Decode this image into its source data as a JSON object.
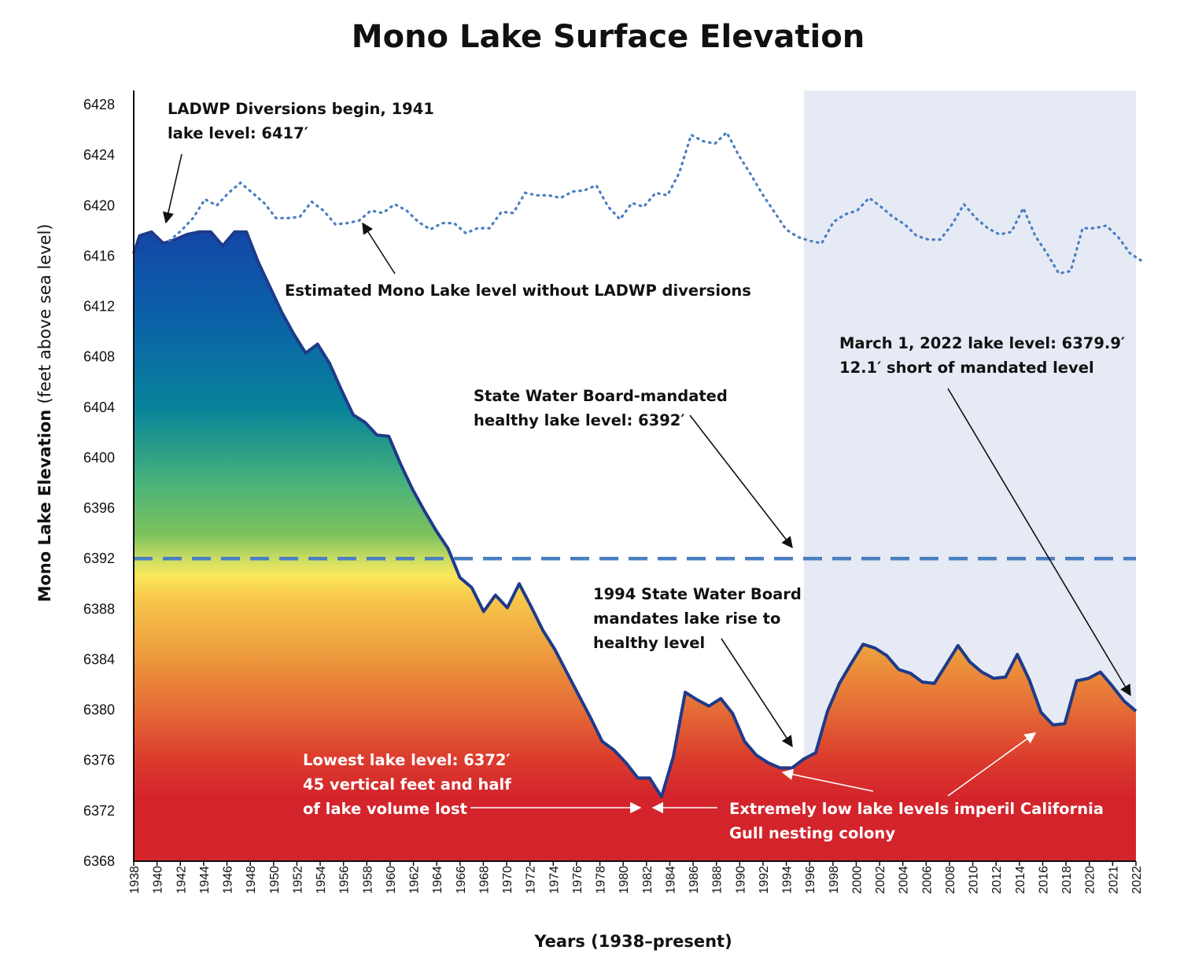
{
  "chart_data": {
    "type": "area",
    "title": "Mono Lake Surface Elevation",
    "xlabel": "Years (1938–present)",
    "ylabel": "Mono Lake Elevation",
    "ylabel_units": "(feet above sea level)",
    "ylim": [
      6368,
      6428
    ],
    "yticks": [
      6368,
      6372,
      6376,
      6380,
      6384,
      6388,
      6392,
      6396,
      6400,
      6404,
      6408,
      6412,
      6416,
      6420,
      6424,
      6428
    ],
    "xticks": [
      "1938",
      "1940",
      "1942",
      "1944",
      "1946",
      "1948",
      "1950",
      "1952",
      "1954",
      "1956",
      "1958",
      "1960",
      "1962",
      "1964",
      "1966",
      "1968",
      "1970",
      "1972",
      "1974",
      "1976",
      "1978",
      "1980",
      "1982",
      "1984",
      "1986",
      "1988",
      "1990",
      "1992",
      "1994",
      "1996",
      "1998",
      "2000",
      "2002",
      "2004",
      "2006",
      "2008",
      "2010",
      "2012",
      "2014",
      "2016",
      "2018",
      "2020",
      "2021",
      "2022"
    ],
    "shaded_region": {
      "from": 1994.5,
      "to": 2022,
      "color": "#e6eaf4"
    },
    "mandated_level": {
      "value": 6392,
      "color": "#4a7fc1"
    },
    "series": [
      {
        "name": "Mono Lake level",
        "color": "#1e3a8a",
        "points": [
          [
            1938,
            6416.2
          ],
          [
            1938.5,
            6417.6
          ],
          [
            1939.5,
            6417.9
          ],
          [
            1940.5,
            6417
          ],
          [
            1941.5,
            6417.3
          ],
          [
            1942.5,
            6417.7
          ],
          [
            1943.5,
            6417.9
          ],
          [
            1944.5,
            6417.9
          ],
          [
            1945.5,
            6416.8
          ],
          [
            1946.5,
            6417.9
          ],
          [
            1947.5,
            6417.9
          ],
          [
            1948.5,
            6415.5
          ],
          [
            1949.5,
            6413.5
          ],
          [
            1950.5,
            6411.5
          ],
          [
            1951.5,
            6409.8
          ],
          [
            1952.5,
            6408.3
          ],
          [
            1953.5,
            6409
          ],
          [
            1954.5,
            6407.5
          ],
          [
            1955.5,
            6405.4
          ],
          [
            1956.5,
            6403.4
          ],
          [
            1957.5,
            6402.8
          ],
          [
            1958.5,
            6401.8
          ],
          [
            1959.5,
            6401.7
          ],
          [
            1960.5,
            6399.5
          ],
          [
            1961.5,
            6397.5
          ],
          [
            1962.5,
            6395.8
          ],
          [
            1963.5,
            6394.2
          ],
          [
            1964.5,
            6392.8
          ],
          [
            1965.5,
            6390.5
          ],
          [
            1966.5,
            6389.7
          ],
          [
            1967.5,
            6387.8
          ],
          [
            1968.5,
            6389.1
          ],
          [
            1969.5,
            6388.1
          ],
          [
            1970.5,
            6390
          ],
          [
            1971.5,
            6388.2
          ],
          [
            1972.5,
            6386.3
          ],
          [
            1973.5,
            6384.8
          ],
          [
            1974.5,
            6383
          ],
          [
            1975.5,
            6381.2
          ],
          [
            1976.5,
            6379.4
          ],
          [
            1977.5,
            6377.5
          ],
          [
            1978.5,
            6376.8
          ],
          [
            1979.5,
            6375.8
          ],
          [
            1980.5,
            6374.6
          ],
          [
            1981.5,
            6374.6
          ],
          [
            1982.5,
            6373.1
          ],
          [
            1983.5,
            6376.3
          ],
          [
            1984.5,
            6381.4
          ],
          [
            1985.5,
            6380.8
          ],
          [
            1986.5,
            6380.3
          ],
          [
            1987.5,
            6380.9
          ],
          [
            1988.5,
            6379.7
          ],
          [
            1989.5,
            6377.5
          ],
          [
            1990.5,
            6376.4
          ],
          [
            1991.5,
            6375.8
          ],
          [
            1992.5,
            6375.4
          ],
          [
            1993.5,
            6375.4
          ],
          [
            1994.5,
            6376.1
          ],
          [
            1995.5,
            6376.6
          ],
          [
            1996.5,
            6379.9
          ],
          [
            1997.5,
            6382.1
          ],
          [
            1998.5,
            6383.7
          ],
          [
            1999.5,
            6385.2
          ],
          [
            2000.5,
            6384.9
          ],
          [
            2001.5,
            6384.3
          ],
          [
            2002.5,
            6383.2
          ],
          [
            2003.5,
            6382.9
          ],
          [
            2004.5,
            6382.2
          ],
          [
            2005.5,
            6382.1
          ],
          [
            2006.5,
            6383.6
          ],
          [
            2007.5,
            6385.1
          ],
          [
            2008.5,
            6383.8
          ],
          [
            2009.5,
            6383
          ],
          [
            2010.5,
            6382.5
          ],
          [
            2011.5,
            6382.6
          ],
          [
            2012.5,
            6384.4
          ],
          [
            2013.5,
            6382.4
          ],
          [
            2014.5,
            6379.8
          ],
          [
            2015.5,
            6378.8
          ],
          [
            2016.5,
            6378.9
          ],
          [
            2017.5,
            6382.3
          ],
          [
            2018.5,
            6382.5
          ],
          [
            2019.5,
            6383
          ],
          [
            2020.5,
            6381.9
          ],
          [
            2021.5,
            6380.7
          ],
          [
            2022.5,
            6379.9
          ]
        ]
      },
      {
        "name": "Estimated Mono Lake level without LADWP diversions",
        "color": "#4a7fc1",
        "points": [
          [
            1941,
            6417.2
          ],
          [
            1942,
            6418
          ],
          [
            1943,
            6419
          ],
          [
            1944,
            6420.5
          ],
          [
            1945,
            6420
          ],
          [
            1946,
            6421
          ],
          [
            1947,
            6421.8
          ],
          [
            1948,
            6421
          ],
          [
            1949,
            6420.2
          ],
          [
            1950,
            6419
          ],
          [
            1951,
            6419
          ],
          [
            1952,
            6419.1
          ],
          [
            1953,
            6420.3
          ],
          [
            1954,
            6419.6
          ],
          [
            1955,
            6418.5
          ],
          [
            1956,
            6418.6
          ],
          [
            1957,
            6418.8
          ],
          [
            1958,
            6419.6
          ],
          [
            1959,
            6419.4
          ],
          [
            1960,
            6420.1
          ],
          [
            1961,
            6419.6
          ],
          [
            1962,
            6418.7
          ],
          [
            1963,
            6418.1
          ],
          [
            1964,
            6418.6
          ],
          [
            1965,
            6418.6
          ],
          [
            1966,
            6417.8
          ],
          [
            1967,
            6418.2
          ],
          [
            1968,
            6418.2
          ],
          [
            1969,
            6419.5
          ],
          [
            1970,
            6419.4
          ],
          [
            1971,
            6421
          ],
          [
            1972,
            6420.8
          ],
          [
            1973,
            6420.8
          ],
          [
            1974,
            6420.6
          ],
          [
            1975,
            6421.1
          ],
          [
            1976,
            6421.2
          ],
          [
            1977,
            6421.6
          ],
          [
            1978,
            6419.9
          ],
          [
            1979,
            6418.9
          ],
          [
            1980,
            6420.2
          ],
          [
            1981,
            6419.9
          ],
          [
            1982,
            6421
          ],
          [
            1983,
            6420.8
          ],
          [
            1984,
            6422.6
          ],
          [
            1985,
            6425.6
          ],
          [
            1986,
            6425.1
          ],
          [
            1987,
            6424.9
          ],
          [
            1988,
            6425.8
          ],
          [
            1989,
            6424
          ],
          [
            1990,
            6422.5
          ],
          [
            1991,
            6420.9
          ],
          [
            1992,
            6419.5
          ],
          [
            1993,
            6418.1
          ],
          [
            1994,
            6417.5
          ],
          [
            1995,
            6417.2
          ],
          [
            1996,
            6417
          ],
          [
            1997,
            6418.7
          ],
          [
            1998,
            6419.3
          ],
          [
            1999,
            6419.6
          ],
          [
            2000,
            6420.6
          ],
          [
            2001,
            6419.9
          ],
          [
            2002,
            6419.1
          ],
          [
            2003,
            6418.5
          ],
          [
            2004,
            6417.6
          ],
          [
            2005,
            6417.3
          ],
          [
            2006,
            6417.3
          ],
          [
            2007,
            6418.5
          ],
          [
            2008,
            6420.1
          ],
          [
            2009,
            6419
          ],
          [
            2010,
            6418.2
          ],
          [
            2011,
            6417.7
          ],
          [
            2012,
            6417.9
          ],
          [
            2013,
            6419.8
          ],
          [
            2014,
            6417.6
          ],
          [
            2015,
            6416.2
          ],
          [
            2016,
            6414.6
          ],
          [
            2017,
            6414.8
          ],
          [
            2018,
            6418.2
          ],
          [
            2019,
            6418.2
          ],
          [
            2020,
            6418.4
          ],
          [
            2021,
            6417.5
          ],
          [
            2022,
            6416.2
          ],
          [
            2023,
            6415.6
          ]
        ]
      }
    ],
    "annotations": {
      "diversions": [
        "LADWP Diversions begin, 1941",
        "lake level: 6417′"
      ],
      "estimated": "Estimated Mono Lake level without LADWP diversions",
      "current": [
        "March 1, 2022 lake level: 6379.9′",
        "12.1′ short of mandated level"
      ],
      "mandated": [
        "State Water Board-mandated",
        "healthy lake level: 6392′"
      ],
      "decision": [
        "1994 State Water Board",
        "mandates lake rise to",
        "healthy level"
      ],
      "lowest": [
        "Lowest lake level: 6372′",
        "45 vertical feet and half",
        "of lake volume lost"
      ],
      "gull": [
        "Extremely low lake levels imperil California",
        "Gull nesting colony"
      ]
    }
  }
}
